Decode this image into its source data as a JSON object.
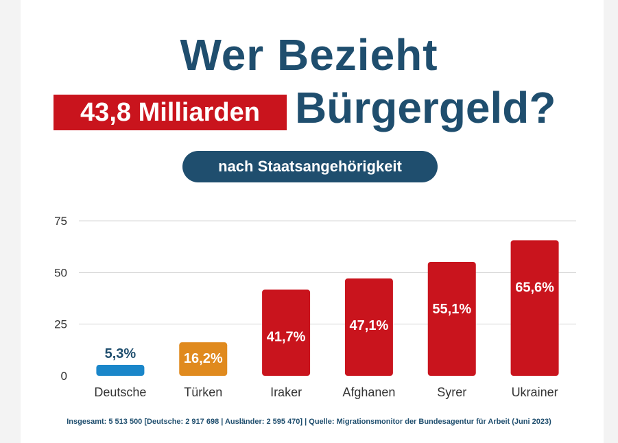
{
  "header": {
    "title_line1": "Wer Bezieht",
    "badge_amount": "43,8 Milliarden",
    "title_line2_rest": "Bürgergeld?",
    "subtitle_pill": "nach Staatsangehörigkeit"
  },
  "chart_data": {
    "type": "bar",
    "title": "Wer Bezieht 43,8 Milliarden Bürgergeld?",
    "subtitle": "nach Staatsangehörigkeit",
    "categories": [
      "Deutsche",
      "Türken",
      "Iraker",
      "Afghanen",
      "Syrer",
      "Ukrainer"
    ],
    "values": [
      5.3,
      16.2,
      41.7,
      47.1,
      55.1,
      65.6
    ],
    "value_labels": [
      "5,3%",
      "16,2%",
      "41,7%",
      "47,1%",
      "55,1%",
      "65,6%"
    ],
    "bar_colors": [
      "#1a86c9",
      "#e08a1e",
      "#c9141d",
      "#c9141d",
      "#c9141d",
      "#c9141d"
    ],
    "ylim": [
      0,
      75
    ],
    "yticks": [
      0,
      25,
      50,
      75
    ],
    "ytick_labels": [
      "0",
      "25",
      "50",
      "75"
    ],
    "grid": true,
    "xlabel": "",
    "ylabel": ""
  },
  "footnote": "Insgesamt: 5 513 500 [Deutsche: 2 917 698 | Ausländer: 2 595 470] | Quelle: Migrationsmonitor der Bundesagentur für Arbeit (Juni 2023)",
  "colors": {
    "navy": "#1f4e6e",
    "red": "#c9141d",
    "label_dark": "#1f4e6e",
    "label_light": "#ffffff",
    "grid": "#d4d4d4",
    "axis_text": "#333333"
  }
}
